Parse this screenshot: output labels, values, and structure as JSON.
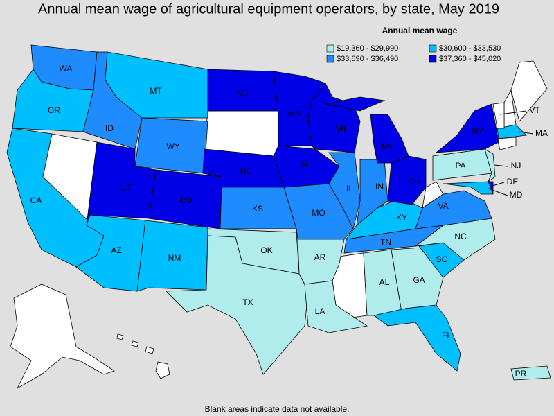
{
  "title": "Annual mean wage of agricultural equipment operators, by state, May 2019",
  "legend": {
    "title": "Annual mean wage",
    "entries": [
      {
        "label": "$19,360 - $29,990",
        "color": "#b0ecec"
      },
      {
        "label": "$30,600 - $33,530",
        "color": "#00bfff"
      },
      {
        "label": "$33,690 - $36,490",
        "color": "#1e8cff"
      },
      {
        "label": "$37,360 - $45,020",
        "color": "#0000e6"
      }
    ]
  },
  "states": [
    {
      "label": "WA",
      "bin": 2
    },
    {
      "label": "OR",
      "bin": 1
    },
    {
      "label": "CA",
      "bin": 1
    },
    {
      "label": "ID",
      "bin": 2
    },
    {
      "label": "MT",
      "bin": 1
    },
    {
      "label": "WY",
      "bin": 2
    },
    {
      "label": "UT",
      "bin": 3
    },
    {
      "label": "CO",
      "bin": 3
    },
    {
      "label": "AZ",
      "bin": 1
    },
    {
      "label": "NM",
      "bin": 1
    },
    {
      "label": "ND",
      "bin": 3
    },
    {
      "label": "NE",
      "bin": 3
    },
    {
      "label": "KS",
      "bin": 2
    },
    {
      "label": "OK",
      "bin": 0
    },
    {
      "label": "TX",
      "bin": 0
    },
    {
      "label": "MN",
      "bin": 3
    },
    {
      "label": "IA",
      "bin": 3
    },
    {
      "label": "WI",
      "bin": 3
    },
    {
      "label": "MO",
      "bin": 2
    },
    {
      "label": "AR",
      "bin": 0
    },
    {
      "label": "LA",
      "bin": 0
    },
    {
      "label": "AL",
      "bin": 0
    },
    {
      "label": "GA",
      "bin": 0
    },
    {
      "label": "FL",
      "bin": 1
    },
    {
      "label": "SC",
      "bin": 1
    },
    {
      "label": "NC",
      "bin": 0
    },
    {
      "label": "TN",
      "bin": 2
    },
    {
      "label": "KY",
      "bin": 1
    },
    {
      "label": "VA",
      "bin": 2
    },
    {
      "label": "IL",
      "bin": 2
    },
    {
      "label": "IN",
      "bin": 2
    },
    {
      "label": "OH",
      "bin": 3
    },
    {
      "label": "MI",
      "bin": 3
    },
    {
      "label": "PA",
      "bin": 0
    },
    {
      "label": "NY",
      "bin": 3
    },
    {
      "label": "NJ",
      "bin": 0
    },
    {
      "label": "DE",
      "bin": 3
    },
    {
      "label": "MD",
      "bin": 1
    },
    {
      "label": "MA",
      "bin": 1
    },
    {
      "label": "VT"
    },
    {
      "label": "PR",
      "bin": 0
    }
  ],
  "footnote": "Blank areas indicate data not available."
}
